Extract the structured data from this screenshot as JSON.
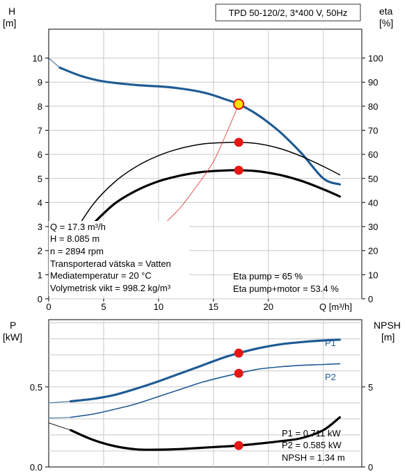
{
  "header": {
    "model": "TPD 50-120/2, 3*400 V, 50Hz"
  },
  "chart_data": [
    {
      "type": "line",
      "xlabel": "Q [m³/h]",
      "ylabel_left": "H",
      "ylabel_left_unit": "[m]",
      "ylabel_right": "eta",
      "ylabel_right_unit": "[%]",
      "xlim": [
        0,
        28.5
      ],
      "ylim_left": [
        0,
        11.2
      ],
      "ylim_right": [
        0,
        112
      ],
      "x_ticks": [
        0,
        5,
        10,
        15,
        20
      ],
      "y_ticks_left": [
        0,
        1,
        2,
        3,
        4,
        5,
        6,
        7,
        8,
        9,
        10
      ],
      "y_ticks_right": [
        0,
        10,
        20,
        30,
        40,
        50,
        60,
        70,
        80,
        90,
        100
      ],
      "grid": true,
      "series": [
        {
          "key": "head",
          "axis": "left",
          "color": "#1f5b94",
          "points": [
            [
              1,
              9.6
            ],
            [
              3,
              9.25
            ],
            [
              5,
              9.03
            ],
            [
              8,
              8.88
            ],
            [
              11,
              8.79
            ],
            [
              14,
              8.58
            ],
            [
              16,
              8.3
            ],
            [
              17.3,
              8.085
            ],
            [
              19,
              7.65
            ],
            [
              21,
              6.95
            ],
            [
              23,
              6.05
            ],
            [
              25,
              5.0
            ],
            [
              26.5,
              4.75
            ]
          ]
        },
        {
          "key": "head_dashed",
          "axis": "left",
          "color": "#1f5b94",
          "points": [
            [
              0,
              10.0
            ],
            [
              1,
              9.6
            ]
          ]
        },
        {
          "key": "eta_pump",
          "axis": "right",
          "color": "#000000",
          "points": [
            [
              2,
              25
            ],
            [
              4,
              39
            ],
            [
              6,
              48.5
            ],
            [
              8,
              55
            ],
            [
              10,
              59.5
            ],
            [
              12,
              62.5
            ],
            [
              14,
              64.3
            ],
            [
              16,
              64.9
            ],
            [
              17.3,
              65
            ],
            [
              19,
              64.5
            ],
            [
              21,
              62.5
            ],
            [
              23,
              59.2
            ],
            [
              25,
              55
            ],
            [
              26.5,
              51.5
            ]
          ]
        },
        {
          "key": "eta_pump_motor",
          "axis": "right",
          "color": "#000000",
          "points": [
            [
              2.7,
              25
            ],
            [
              4,
              31
            ],
            [
              6,
              39.5
            ],
            [
              8,
              45
            ],
            [
              10,
              48.8
            ],
            [
              12,
              51.2
            ],
            [
              14,
              52.7
            ],
            [
              16,
              53.3
            ],
            [
              17.3,
              53.4
            ],
            [
              19,
              53.0
            ],
            [
              21,
              51.5
            ],
            [
              23,
              49
            ],
            [
              25,
              45.5
            ],
            [
              26.5,
              42.5
            ]
          ]
        },
        {
          "key": "system_curve",
          "axis": "left",
          "color": "#e03030",
          "points": [
            [
              10.5,
              3.1
            ],
            [
              12,
              3.8
            ],
            [
              13.5,
              4.7
            ],
            [
              15,
              5.7
            ],
            [
              16.2,
              6.9
            ],
            [
              17.3,
              8.085
            ]
          ]
        }
      ],
      "operating_points": [
        {
          "series": "head",
          "x": 17.3,
          "y": 8.085,
          "style": "hollow-yellow"
        },
        {
          "series": "eta_pump",
          "x": 17.3,
          "y": 65,
          "style": "red"
        },
        {
          "series": "eta_pump_motor",
          "x": 17.3,
          "y": 53.4,
          "style": "red"
        }
      ],
      "info_left": [
        "Q = 17.3 m³/h",
        "H = 8.085 m",
        "n = 2894 rpm",
        "Transporterad vätska = Vatten",
        "Mediatemperatur = 20 °C",
        "Volymetrisk vikt = 998.2 kg/m³"
      ],
      "info_right": [
        "Eta pump = 65 %",
        "Eta pump+motor = 53.4 %"
      ]
    },
    {
      "type": "line",
      "ylabel_left": "P",
      "ylabel_left_unit": "[kW]",
      "ylabel_right": "NPSH",
      "ylabel_right_unit": "[m]",
      "xlim": [
        0,
        28.5
      ],
      "ylim_left": [
        0,
        0.92
      ],
      "ylim_right": [
        0,
        9.2
      ],
      "y_ticks_left": [
        {
          "v": 0.0,
          "label": "0.0"
        },
        {
          "v": 0.5,
          "label": "0.5"
        }
      ],
      "y_ticks_right": [
        {
          "v": 0,
          "label": "0"
        },
        {
          "v": 5,
          "label": "5"
        }
      ],
      "grid": true,
      "series": [
        {
          "key": "P1",
          "name": "P1",
          "axis": "left",
          "color": "#1f5b94",
          "points": [
            [
              2,
              0.41
            ],
            [
              4,
              0.425
            ],
            [
              6,
              0.45
            ],
            [
              8,
              0.49
            ],
            [
              10,
              0.535
            ],
            [
              12,
              0.585
            ],
            [
              14,
              0.635
            ],
            [
              16,
              0.685
            ],
            [
              17.3,
              0.711
            ],
            [
              19,
              0.74
            ],
            [
              21,
              0.765
            ],
            [
              23,
              0.78
            ],
            [
              25,
              0.79
            ],
            [
              26.5,
              0.795
            ]
          ]
        },
        {
          "key": "P1_dashed",
          "axis": "left",
          "color": "#1f5b94",
          "points": [
            [
              0,
              0.4
            ],
            [
              2,
              0.41
            ]
          ]
        },
        {
          "key": "P2",
          "name": "P2",
          "axis": "left",
          "color": "#1f5b94",
          "points": [
            [
              2,
              0.31
            ],
            [
              4,
              0.33
            ],
            [
              6,
              0.36
            ],
            [
              8,
              0.395
            ],
            [
              10,
              0.44
            ],
            [
              12,
              0.485
            ],
            [
              14,
              0.53
            ],
            [
              16,
              0.565
            ],
            [
              17.3,
              0.585
            ],
            [
              19,
              0.61
            ],
            [
              21,
              0.625
            ],
            [
              23,
              0.635
            ],
            [
              25,
              0.64
            ],
            [
              26.5,
              0.645
            ]
          ]
        },
        {
          "key": "P2_dashed",
          "axis": "left",
          "color": "#1f5b94",
          "points": [
            [
              0,
              0.305
            ],
            [
              2,
              0.31
            ]
          ]
        },
        {
          "key": "NPSH",
          "axis": "right",
          "color": "#000000",
          "points": [
            [
              2,
              2.3
            ],
            [
              4,
              1.7
            ],
            [
              6,
              1.3
            ],
            [
              8,
              1.1
            ],
            [
              10,
              1.08
            ],
            [
              12,
              1.12
            ],
            [
              14,
              1.2
            ],
            [
              16,
              1.28
            ],
            [
              17.3,
              1.34
            ],
            [
              19,
              1.45
            ],
            [
              21,
              1.6
            ],
            [
              23,
              1.8
            ],
            [
              25,
              2.3
            ],
            [
              26.5,
              3.1
            ]
          ]
        },
        {
          "key": "NPSH_dashed",
          "axis": "right",
          "color": "#000000",
          "points": [
            [
              0,
              2.75
            ],
            [
              2,
              2.3
            ]
          ]
        }
      ],
      "operating_points": [
        {
          "series": "P1",
          "x": 17.3,
          "y": 0.711,
          "style": "red"
        },
        {
          "series": "P2",
          "x": 17.3,
          "y": 0.585,
          "style": "red"
        },
        {
          "series": "NPSH",
          "x": 17.3,
          "y": 1.34,
          "style": "red"
        }
      ],
      "info_right": [
        "P1 = 0.711 kW",
        "P2 = 0.585 kW",
        "NPSH = 1.34 m"
      ]
    }
  ]
}
